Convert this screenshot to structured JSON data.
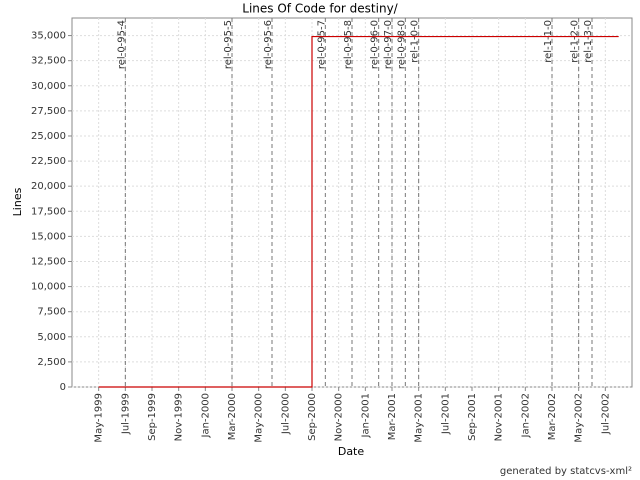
{
  "chart_data": {
    "type": "line",
    "title": "Lines Of Code for destiny/",
    "x_label": "Date",
    "y_label": "Lines",
    "footer": "generated by statcvs-xml²",
    "x": [
      "1999-05",
      "2000-09",
      "2000-09",
      "2002-08"
    ],
    "values": [
      0,
      0,
      34900,
      34900
    ],
    "color": "#cc0000",
    "xlim": [
      "1999-03",
      "2002-09"
    ],
    "xticks": [
      {
        "value": "1999-05",
        "label": "May-1999"
      },
      {
        "value": "1999-07",
        "label": "Jul-1999"
      },
      {
        "value": "1999-09",
        "label": "Sep-1999"
      },
      {
        "value": "1999-11",
        "label": "Nov-1999"
      },
      {
        "value": "2000-01",
        "label": "Jan-2000"
      },
      {
        "value": "2000-03",
        "label": "Mar-2000"
      },
      {
        "value": "2000-05",
        "label": "May-2000"
      },
      {
        "value": "2000-07",
        "label": "Jul-2000"
      },
      {
        "value": "2000-09",
        "label": "Sep-2000"
      },
      {
        "value": "2000-11",
        "label": "Nov-2000"
      },
      {
        "value": "2001-01",
        "label": "Jan-2001"
      },
      {
        "value": "2001-03",
        "label": "Mar-2001"
      },
      {
        "value": "2001-05",
        "label": "May-2001"
      },
      {
        "value": "2001-07",
        "label": "Jul-2001"
      },
      {
        "value": "2001-09",
        "label": "Sep-2001"
      },
      {
        "value": "2001-11",
        "label": "Nov-2001"
      },
      {
        "value": "2002-01",
        "label": "Jan-2002"
      },
      {
        "value": "2002-03",
        "label": "Mar-2002"
      },
      {
        "value": "2002-05",
        "label": "May-2002"
      },
      {
        "value": "2002-07",
        "label": "Jul-2002"
      }
    ],
    "ylim": [
      0,
      36750
    ],
    "yticks": [
      0,
      {
        "value": 2500,
        "label": "2,500"
      },
      {
        "value": 5000,
        "label": "5,000"
      },
      {
        "value": 7500,
        "label": "7,500"
      },
      {
        "value": 10000,
        "label": "10,000"
      },
      {
        "value": 12500,
        "label": "12,500"
      },
      {
        "value": 15000,
        "label": "15,000"
      },
      {
        "value": 17500,
        "label": "17,500"
      },
      {
        "value": 20000,
        "label": "20,000"
      },
      {
        "value": 22500,
        "label": "22,500"
      },
      {
        "value": 25000,
        "label": "25,000"
      },
      {
        "value": 27500,
        "label": "27,500"
      },
      {
        "value": 30000,
        "label": "30,000"
      },
      {
        "value": 32500,
        "label": "32,500"
      },
      {
        "value": 35000,
        "label": "35,000"
      }
    ],
    "grid": true,
    "markers": [
      {
        "x": "1999-07",
        "label": "rel-0-95-4"
      },
      {
        "x": "2000-03",
        "label": "rel-0-95-5"
      },
      {
        "x": "2000-06",
        "label": "rel-0-95-6"
      },
      {
        "x": "2000-10",
        "label": "rel-0-95-7"
      },
      {
        "x": "2000-12",
        "label": "rel-0-95-8"
      },
      {
        "x": "2001-02",
        "label": "rel-0-96-0"
      },
      {
        "x": "2001-03",
        "label": "rel-0-97-0"
      },
      {
        "x": "2001-04",
        "label": "rel-0-98-0"
      },
      {
        "x": "2001-05",
        "label": "rel-1-0-0"
      },
      {
        "x": "2002-03",
        "label": "rel-1-1-0"
      },
      {
        "x": "2002-05",
        "label": "rel-1-2-0"
      },
      {
        "x": "2002-06",
        "label": "rel-1-3-0"
      }
    ]
  }
}
